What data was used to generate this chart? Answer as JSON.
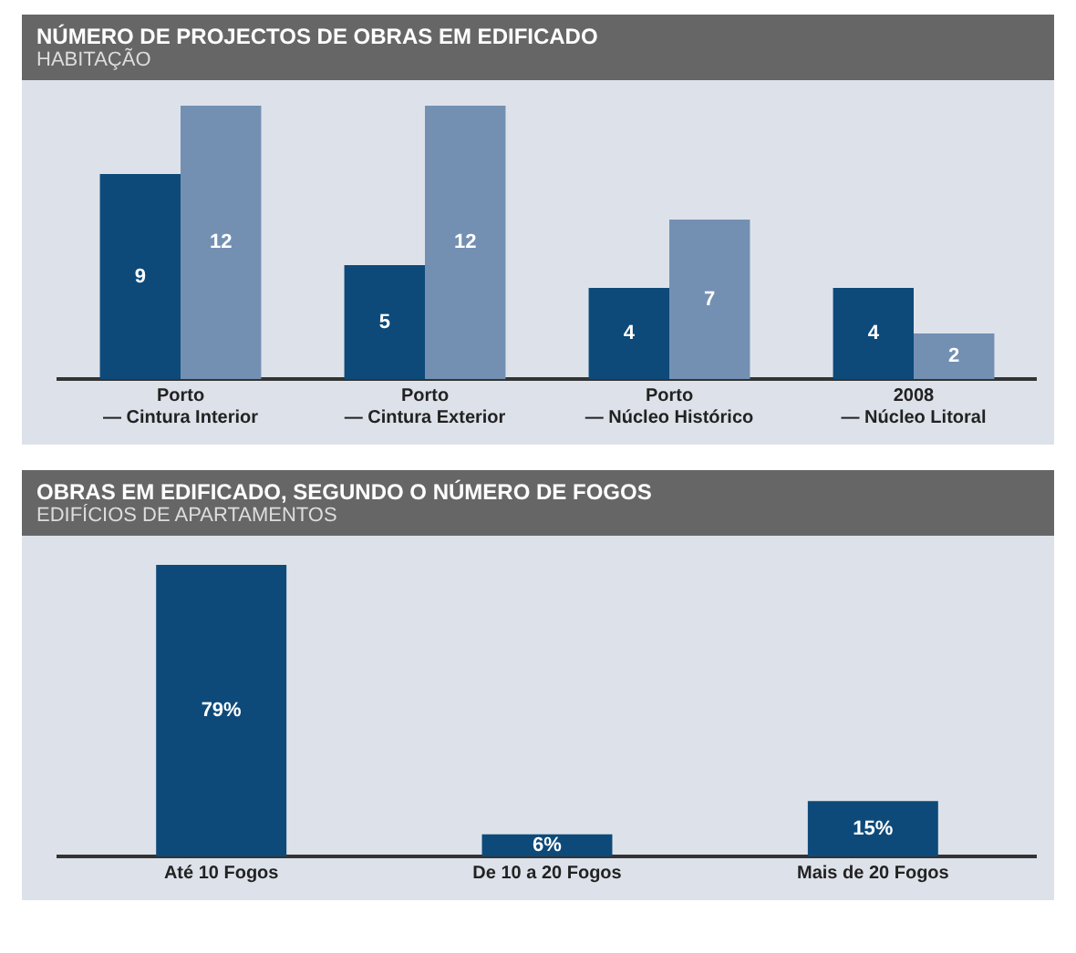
{
  "chart_data": [
    {
      "type": "bar",
      "title": "NÚMERO DE PROJECTOS DE OBRAS EM EDIFICADO",
      "subtitle": "HABITAÇÃO",
      "categories": [
        "Porto\n— Cintura Interior",
        "Porto\n— Cintura Exterior",
        "Porto\n— Núcleo Histórico",
        "2008\n— Núcleo Litoral"
      ],
      "series": [
        {
          "color": "#0d4a7a",
          "values": [
            9,
            5,
            4,
            4
          ]
        },
        {
          "color": "#7390b3",
          "values": [
            12,
            12,
            7,
            2
          ]
        }
      ],
      "data_labels": true,
      "grid": false,
      "legend": false
    },
    {
      "type": "bar",
      "title": "OBRAS EM EDIFICADO, SEGUNDO O NÚMERO DE FOGOS",
      "subtitle": "EDIFÍCIOS DE APARTAMENTOS",
      "categories": [
        "Até 10 Fogos",
        "De 10 a 20 Fogos",
        "Mais de 20 Fogos"
      ],
      "series": [
        {
          "color": "#0d4a7a",
          "values": [
            79,
            6,
            15
          ],
          "value_labels": [
            "79%",
            "6%",
            "15%"
          ]
        }
      ],
      "grid": false,
      "legend": false
    }
  ]
}
